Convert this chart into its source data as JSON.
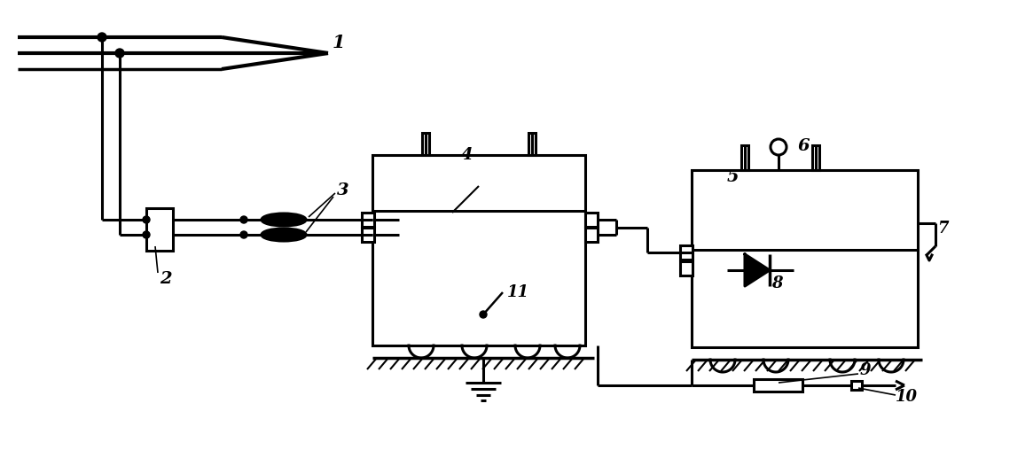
{
  "bg": "#ffffff",
  "lc": "#000000",
  "lw": 2.2,
  "figsize": [
    11.65,
    5.08
  ],
  "dpi": 100
}
